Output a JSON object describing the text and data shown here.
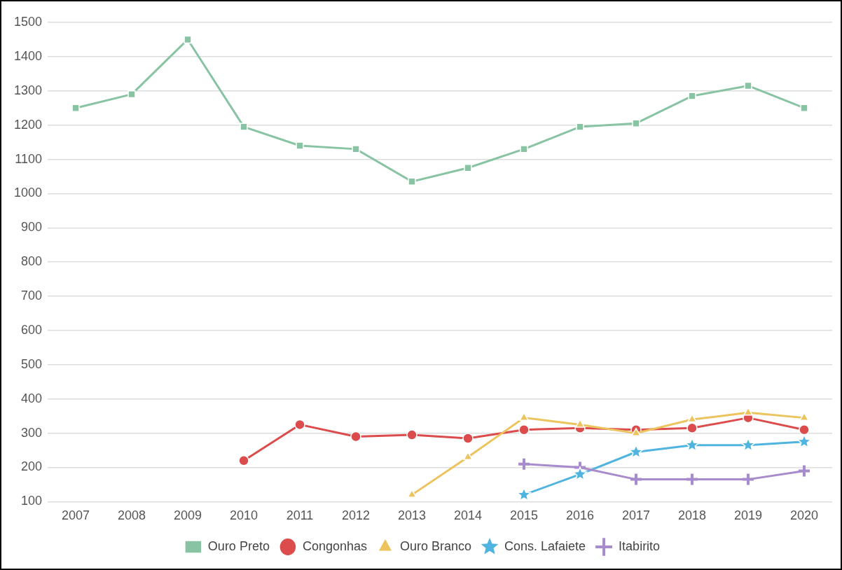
{
  "chart_data": {
    "type": "line",
    "categories": [
      "2007",
      "2008",
      "2009",
      "2010",
      "2011",
      "2012",
      "2013",
      "2014",
      "2015",
      "2016",
      "2017",
      "2018",
      "2019",
      "2020"
    ],
    "series": [
      {
        "name": "Ouro Preto",
        "color": "#88c4a3",
        "marker": "square",
        "values": [
          1250,
          1290,
          1450,
          1195,
          1140,
          1130,
          1035,
          1075,
          1130,
          1195,
          1205,
          1285,
          1315,
          1250
        ]
      },
      {
        "name": "Congonhas",
        "color": "#dc4c4c",
        "marker": "circle",
        "values": [
          null,
          null,
          null,
          220,
          325,
          290,
          295,
          285,
          310,
          315,
          310,
          315,
          345,
          310
        ]
      },
      {
        "name": "Ouro Branco",
        "color": "#ecc35c",
        "marker": "triangle",
        "values": [
          null,
          null,
          null,
          null,
          null,
          null,
          120,
          230,
          345,
          325,
          300,
          340,
          360,
          345
        ]
      },
      {
        "name": "Cons. Lafaiete",
        "color": "#4fb5e0",
        "marker": "star",
        "values": [
          null,
          null,
          null,
          null,
          null,
          null,
          null,
          null,
          120,
          180,
          245,
          265,
          265,
          275
        ]
      },
      {
        "name": "Itabirito",
        "color": "#a88bcc",
        "marker": "cross",
        "values": [
          null,
          null,
          null,
          null,
          null,
          null,
          null,
          null,
          210,
          200,
          165,
          165,
          165,
          190
        ]
      }
    ],
    "ylim": [
      100,
      1500
    ],
    "yticks": [
      100,
      200,
      300,
      400,
      500,
      600,
      700,
      800,
      900,
      1000,
      1100,
      1200,
      1300,
      1400,
      1500
    ],
    "grid": "y",
    "legend": "bottom",
    "line_style": "solid"
  }
}
